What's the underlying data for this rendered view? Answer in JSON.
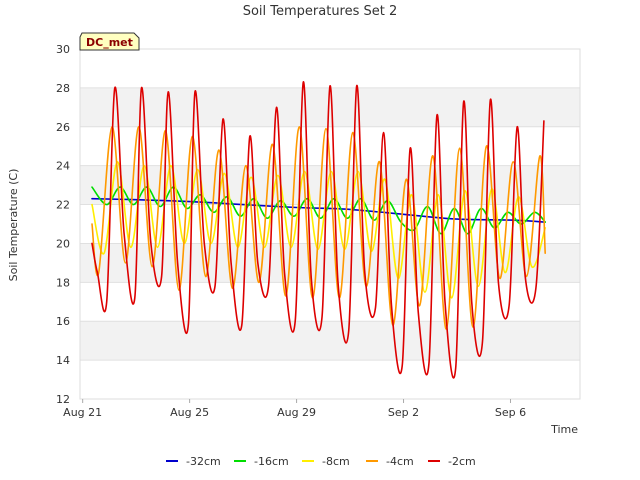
{
  "chart_data": {
    "type": "line",
    "title": "Soil Temperatures Set 2",
    "xlabel": "Time",
    "ylabel": "Soil Temperature (C)",
    "station_label": "DC_met",
    "ylim": [
      12,
      30
    ],
    "yticks": [
      12,
      14,
      16,
      18,
      20,
      22,
      24,
      26,
      28,
      30
    ],
    "xlim": [
      -0.1,
      18.6
    ],
    "xticks": [
      {
        "pos": 0,
        "label": "Aug 21"
      },
      {
        "pos": 4,
        "label": "Aug 25"
      },
      {
        "pos": 8,
        "label": "Aug 29"
      },
      {
        "pos": 12,
        "label": "Sep 2"
      },
      {
        "pos": 16,
        "label": "Sep 6"
      }
    ],
    "x_unit": "days since Aug 21",
    "grid": true,
    "legend_position": "bottom",
    "series": [
      {
        "name": "-32cm",
        "color": "#0000cc",
        "x": [
          0.35,
          2,
          4,
          6,
          8,
          10,
          12,
          14,
          16,
          17.3
        ],
        "y": [
          22.3,
          22.25,
          22.15,
          22.0,
          21.85,
          21.75,
          21.5,
          21.25,
          21.2,
          21.1
        ]
      },
      {
        "name": "-16cm",
        "color": "#00dd00",
        "x": [
          0.35,
          0.9,
          1.4,
          1.9,
          2.4,
          2.9,
          3.4,
          3.9,
          4.4,
          4.9,
          5.4,
          5.9,
          6.4,
          6.9,
          7.4,
          7.9,
          8.4,
          8.9,
          9.4,
          9.9,
          10.4,
          10.9,
          11.4,
          11.9,
          12.4,
          12.9,
          13.4,
          13.9,
          14.4,
          14.9,
          15.4,
          15.9,
          16.4,
          16.9,
          17.3
        ],
        "y": [
          22.9,
          22.0,
          22.9,
          22.0,
          22.9,
          21.9,
          22.9,
          21.8,
          22.5,
          21.6,
          22.4,
          21.4,
          22.3,
          21.3,
          22.2,
          21.4,
          22.3,
          21.3,
          22.3,
          21.3,
          22.3,
          21.2,
          22.2,
          21.1,
          20.7,
          21.9,
          20.5,
          21.8,
          20.5,
          21.8,
          20.8,
          21.6,
          21.0,
          21.6,
          21.1
        ]
      },
      {
        "name": "-8cm",
        "color": "#ffee00",
        "x": [
          0.35,
          0.8,
          1.3,
          1.8,
          2.3,
          2.8,
          3.3,
          3.8,
          4.3,
          4.8,
          5.3,
          5.8,
          6.3,
          6.8,
          7.3,
          7.8,
          8.3,
          8.8,
          9.3,
          9.8,
          10.3,
          10.8,
          11.3,
          11.8,
          12.3,
          12.8,
          13.3,
          13.8,
          14.3,
          14.8,
          15.3,
          15.8,
          16.3,
          16.8,
          17.3
        ],
        "y": [
          22.0,
          19.5,
          24.2,
          19.8,
          24.0,
          19.8,
          24.0,
          20.0,
          23.8,
          20.0,
          23.6,
          19.8,
          23.4,
          19.8,
          23.5,
          19.8,
          23.7,
          19.7,
          23.7,
          19.7,
          23.7,
          19.6,
          23.3,
          18.2,
          22.5,
          17.5,
          22.5,
          17.2,
          22.7,
          17.8,
          22.8,
          18.5,
          22.4,
          18.8,
          20.8
        ]
      },
      {
        "name": "-4cm",
        "color": "#ff9900",
        "x": [
          0.35,
          0.6,
          1.1,
          1.6,
          2.1,
          2.6,
          3.1,
          3.6,
          4.1,
          4.6,
          5.1,
          5.6,
          6.1,
          6.6,
          7.1,
          7.6,
          8.1,
          8.6,
          9.1,
          9.6,
          10.1,
          10.6,
          11.1,
          11.6,
          12.1,
          12.6,
          13.1,
          13.6,
          14.1,
          14.6,
          15.1,
          15.6,
          16.1,
          16.6,
          17.1,
          17.3
        ],
        "y": [
          21.0,
          18.5,
          26.0,
          19.0,
          26.0,
          18.8,
          25.8,
          17.6,
          25.5,
          18.3,
          24.8,
          17.7,
          24.0,
          18.0,
          25.1,
          17.3,
          26.0,
          17.2,
          25.9,
          17.2,
          25.7,
          17.8,
          24.2,
          15.8,
          23.3,
          16.8,
          24.5,
          15.6,
          24.9,
          15.7,
          25.0,
          18.2,
          24.2,
          18.3,
          24.5,
          19.5
        ]
      },
      {
        "name": "-2cm",
        "color": "#dd0000",
        "x": [
          0.35,
          0.55,
          0.9,
          1.2,
          1.55,
          1.95,
          2.2,
          2.55,
          2.95,
          3.2,
          3.55,
          3.95,
          4.2,
          4.55,
          4.95,
          5.25,
          5.55,
          5.95,
          6.25,
          6.55,
          6.95,
          7.25,
          7.55,
          7.95,
          8.25,
          8.55,
          8.95,
          9.25,
          9.55,
          9.95,
          10.25,
          10.55,
          10.95,
          11.25,
          11.55,
          11.95,
          12.25,
          12.55,
          12.95,
          13.25,
          13.55,
          13.95,
          14.25,
          14.55,
          14.95,
          15.25,
          15.55,
          15.95,
          16.25,
          16.55,
          16.95,
          17.25
        ],
        "y": [
          20.0,
          18.5,
          17.0,
          28.0,
          20.5,
          17.2,
          28.0,
          20.0,
          18.3,
          27.8,
          19.0,
          15.8,
          27.8,
          20.0,
          17.8,
          26.4,
          19.0,
          15.8,
          25.5,
          19.0,
          17.8,
          27.0,
          18.5,
          16.0,
          28.3,
          18.2,
          16.2,
          28.1,
          18.0,
          15.5,
          28.1,
          18.5,
          16.7,
          25.7,
          16.8,
          13.7,
          24.9,
          16.5,
          13.8,
          26.6,
          17.0,
          13.6,
          27.3,
          17.0,
          14.9,
          27.4,
          18.0,
          16.8,
          26.0,
          18.3,
          17.7,
          26.3
        ]
      }
    ]
  }
}
